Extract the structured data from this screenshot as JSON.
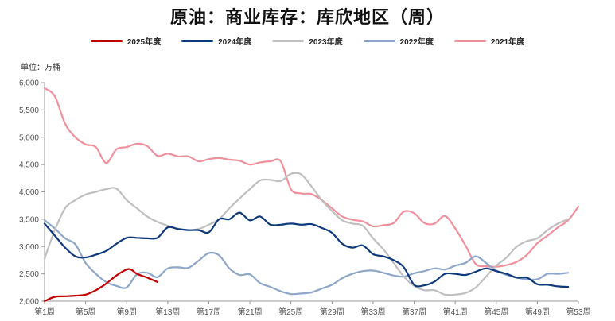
{
  "chart_data": {
    "type": "line",
    "title": "原油：商业库存：库欣地区（周）",
    "unit_label": "单位：万桶",
    "ylim": [
      2000,
      6000
    ],
    "yticks": [
      2000,
      2500,
      3000,
      3500,
      4000,
      4500,
      5000,
      5500,
      6000
    ],
    "ytick_labels": [
      "2,000",
      "2,500",
      "3,000",
      "3,500",
      "4,000",
      "4,500",
      "5,000",
      "5,500",
      "6,000"
    ],
    "xlim": [
      1,
      53
    ],
    "xticks": [
      1,
      5,
      9,
      13,
      17,
      21,
      25,
      29,
      33,
      37,
      41,
      45,
      49,
      53
    ],
    "xtick_labels": [
      "第1周",
      "第5周",
      "第9周",
      "第13周",
      "第17周",
      "第21周",
      "第25周",
      "第29周",
      "第33周",
      "第37周",
      "第41周",
      "第45周",
      "第49周",
      "第53周"
    ],
    "grid": false,
    "legend_position": "top-center",
    "series": [
      {
        "name": "2025年度",
        "color": "#c00000",
        "x": [
          1,
          2,
          3,
          4,
          5,
          6,
          7,
          8,
          9,
          9.5,
          10,
          11,
          12
        ],
        "values": [
          2000,
          2080,
          2090,
          2100,
          2120,
          2200,
          2320,
          2470,
          2580,
          2570,
          2500,
          2430,
          2350
        ]
      },
      {
        "name": "2024年度",
        "color": "#0e3a7c",
        "x": [
          1,
          2,
          3,
          4,
          5,
          6,
          7,
          8,
          9,
          10,
          11,
          12,
          13,
          14,
          15,
          16,
          17,
          18,
          19,
          20,
          21,
          22,
          23,
          24,
          25,
          26,
          27,
          28,
          29,
          30,
          31,
          32,
          33,
          34,
          35,
          36,
          37,
          38,
          39,
          40,
          41,
          42,
          43,
          44,
          45,
          46,
          47,
          48,
          49,
          50,
          51,
          52
        ],
        "values": [
          3420,
          3200,
          2980,
          2820,
          2800,
          2850,
          2920,
          3050,
          3160,
          3160,
          3150,
          3160,
          3350,
          3320,
          3300,
          3300,
          3260,
          3500,
          3500,
          3620,
          3480,
          3550,
          3400,
          3400,
          3420,
          3400,
          3410,
          3340,
          3250,
          3050,
          2980,
          3020,
          2860,
          2820,
          2750,
          2620,
          2300,
          2290,
          2360,
          2500,
          2500,
          2480,
          2540,
          2600,
          2550,
          2500,
          2430,
          2430,
          2310,
          2300,
          2270,
          2260
        ]
      },
      {
        "name": "2023年度",
        "color": "#bfbfbf",
        "x": [
          1,
          2,
          3,
          4,
          5,
          6,
          7,
          8,
          9,
          10,
          11,
          12,
          13,
          14,
          15,
          16,
          17,
          18,
          19,
          20,
          21,
          22,
          23,
          24,
          25,
          26,
          27,
          28,
          29,
          30,
          31,
          32,
          33,
          34,
          35,
          36,
          37,
          38,
          39,
          40,
          41,
          42,
          43,
          44,
          45,
          46,
          47,
          48,
          49,
          50,
          51,
          52
        ],
        "values": [
          2780,
          3300,
          3700,
          3850,
          3950,
          4000,
          4050,
          4060,
          3850,
          3700,
          3550,
          3450,
          3380,
          3330,
          3300,
          3320,
          3400,
          3500,
          3700,
          3880,
          4050,
          4210,
          4220,
          4200,
          4330,
          4320,
          4100,
          3850,
          3650,
          3480,
          3420,
          3380,
          3150,
          2950,
          2700,
          2450,
          2280,
          2200,
          2200,
          2120,
          2120,
          2150,
          2250,
          2450,
          2650,
          2800,
          3000,
          3100,
          3150,
          3300,
          3420,
          3500
        ]
      },
      {
        "name": "2022年度",
        "color": "#8ea7c8",
        "x": [
          1,
          2,
          3,
          4,
          5,
          6,
          7,
          8,
          9,
          10,
          11,
          12,
          13,
          14,
          15,
          16,
          17,
          18,
          19,
          20,
          21,
          22,
          23,
          24,
          25,
          26,
          27,
          28,
          29,
          30,
          31,
          32,
          33,
          34,
          35,
          36,
          37,
          38,
          39,
          40,
          41,
          42,
          43,
          44,
          45,
          46,
          47,
          48,
          49,
          50,
          51,
          52
        ],
        "values": [
          3480,
          3330,
          3150,
          3040,
          2700,
          2500,
          2350,
          2280,
          2250,
          2490,
          2520,
          2440,
          2600,
          2620,
          2610,
          2740,
          2880,
          2840,
          2600,
          2480,
          2490,
          2330,
          2260,
          2180,
          2130,
          2140,
          2160,
          2230,
          2300,
          2420,
          2500,
          2550,
          2560,
          2520,
          2470,
          2450,
          2510,
          2550,
          2600,
          2580,
          2650,
          2700,
          2820,
          2700,
          2560,
          2480,
          2430,
          2400,
          2400,
          2500,
          2500,
          2520
        ]
      },
      {
        "name": "2021年度",
        "color": "#f0909c",
        "x": [
          1,
          2,
          3,
          4,
          5,
          6,
          7,
          8,
          9,
          10,
          11,
          12,
          13,
          14,
          15,
          16,
          17,
          18,
          19,
          20,
          21,
          22,
          23,
          24,
          25,
          26,
          27,
          28,
          29,
          30,
          31,
          32,
          33,
          34,
          35,
          36,
          37,
          38,
          39,
          40,
          41,
          42,
          43,
          44,
          45,
          46,
          47,
          48,
          49,
          50,
          51,
          52,
          53
        ],
        "values": [
          5900,
          5750,
          5250,
          5000,
          4870,
          4820,
          4530,
          4780,
          4820,
          4880,
          4840,
          4660,
          4700,
          4650,
          4650,
          4560,
          4600,
          4620,
          4590,
          4570,
          4500,
          4540,
          4560,
          4560,
          4050,
          3970,
          3960,
          3850,
          3700,
          3550,
          3490,
          3460,
          3370,
          3390,
          3430,
          3640,
          3610,
          3430,
          3420,
          3560,
          3330,
          3020,
          2680,
          2640,
          2630,
          2660,
          2720,
          2850,
          3060,
          3200,
          3350,
          3480,
          3730
        ]
      }
    ]
  }
}
